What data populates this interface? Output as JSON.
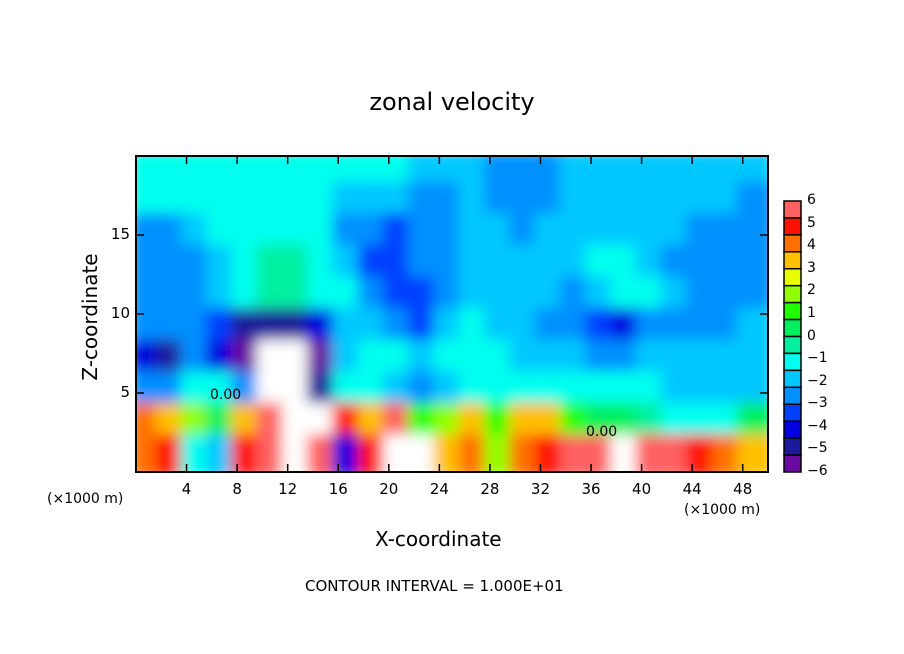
{
  "chart_data": {
    "type": "heatmap",
    "title": "zonal velocity",
    "xlabel": "X-coordinate",
    "ylabel": "Z-coordinate",
    "x_unit_label": "(×1000 m)",
    "footer": "CONTOUR INTERVAL = 1.000E+01",
    "xlim": [
      0,
      50
    ],
    "ylim": [
      0,
      20
    ],
    "x_ticks": [
      "4",
      "8",
      "12",
      "16",
      "20",
      "24",
      "28",
      "32",
      "36",
      "40",
      "44",
      "48"
    ],
    "x_tick_values": [
      4,
      8,
      12,
      16,
      20,
      24,
      28,
      32,
      36,
      40,
      44,
      48
    ],
    "y_ticks": [
      "5",
      "10",
      "15"
    ],
    "y_tick_values": [
      5,
      10,
      15
    ],
    "contour_labels": [
      "0.00",
      "0.00"
    ],
    "colorbar": {
      "labels": [
        "6",
        "5",
        "4",
        "3",
        "2",
        "1",
        "0",
        "−1",
        "−2",
        "−3",
        "−4",
        "−5",
        "−6"
      ],
      "range": [
        -6,
        6
      ],
      "colors": [
        "#6a0aa0",
        "#1a1a9a",
        "#0000e0",
        "#0040ff",
        "#0090ff",
        "#00c8ff",
        "#00ffee",
        "#00f0a0",
        "#00f060",
        "#20ff00",
        "#90ff00",
        "#e8ff00",
        "#ffc000",
        "#ff7000",
        "#ff1000",
        "#ff6060"
      ],
      "over_color": "#ffffff",
      "under_color": "#ffffff"
    },
    "grid_x_step": 2,
    "grid_z_step": 2,
    "values_top_to_bottom": [
      [
        -1,
        -1,
        -1,
        -1,
        -1,
        -1,
        -1,
        -1,
        -1.5,
        -1.5,
        -1.5,
        -2,
        -2,
        -2,
        -3,
        -3,
        -2.5,
        -2,
        -2,
        -2,
        -2,
        -2,
        -2,
        -2,
        -2
      ],
      [
        -1.5,
        -1.5,
        -1,
        -1,
        -1,
        -1,
        -1.5,
        -1.5,
        -2,
        -2,
        -2,
        -2.5,
        -2.5,
        -2,
        -3,
        -3,
        -2.5,
        -2,
        -2,
        -2,
        -2,
        -2,
        -2,
        -2,
        -2.5
      ],
      [
        -3,
        -2.5,
        -2,
        -1.5,
        -1,
        -1,
        -1,
        -1.5,
        -2.5,
        -3,
        -3.5,
        -3,
        -2.5,
        -2,
        -2,
        -2.5,
        -2,
        -2,
        -2,
        -2,
        -2,
        -2,
        -2.5,
        -3,
        -3
      ],
      [
        -3,
        -3,
        -2.5,
        -2,
        -1,
        -0.5,
        -0.5,
        -1,
        -2,
        -3.5,
        -3.5,
        -3,
        -2.5,
        -2,
        -2,
        -2,
        -2,
        -2,
        -1.5,
        -1.5,
        -2,
        -2.5,
        -3,
        -3,
        -3
      ],
      [
        -3,
        -3,
        -2.5,
        -2,
        -1,
        -0.5,
        -0.5,
        -1,
        -1.5,
        -3,
        -3.5,
        -3.5,
        -3,
        -2,
        -2,
        -2,
        -2,
        -2.5,
        -2,
        -1,
        -1,
        -2,
        -2.5,
        -3,
        -2.5
      ],
      [
        -3,
        -3,
        -3,
        -3.5,
        -5,
        -5,
        -5,
        -4,
        -2,
        -2,
        -3,
        -3.5,
        -2,
        -1.5,
        -2,
        -2,
        -2.5,
        -3,
        -3.5,
        -4.5,
        -2.5,
        -2.5,
        -2.5,
        -2.5,
        -2
      ],
      [
        -4,
        -5,
        -3,
        -4,
        -6,
        -7,
        -7,
        -6,
        -2,
        -1,
        -1.5,
        -2,
        -1.5,
        -1,
        -1.5,
        -2,
        -2,
        -2,
        -2.5,
        -3,
        -2,
        -2,
        -2,
        -2,
        -2
      ],
      [
        -3,
        -3,
        -1.5,
        -1,
        -3,
        -7,
        -7,
        -5,
        -1,
        -1,
        -2,
        -2.5,
        -2,
        -1,
        -1,
        -1,
        -1.5,
        -1.5,
        -1,
        -1,
        -1.5,
        -2,
        -2,
        -2,
        -2
      ],
      [
        4,
        3,
        2,
        0.5,
        3,
        6,
        7,
        7,
        5,
        3,
        6,
        1,
        2,
        3,
        1,
        3,
        3,
        1,
        0,
        0,
        -0.5,
        -1,
        -1.5,
        -1.5,
        0
      ],
      [
        4,
        5,
        -1,
        -2,
        5,
        6,
        7,
        6,
        -4,
        5,
        7,
        7,
        3,
        4,
        2,
        4,
        5,
        6,
        6,
        7,
        6,
        6,
        5,
        4,
        3
      ]
    ]
  }
}
